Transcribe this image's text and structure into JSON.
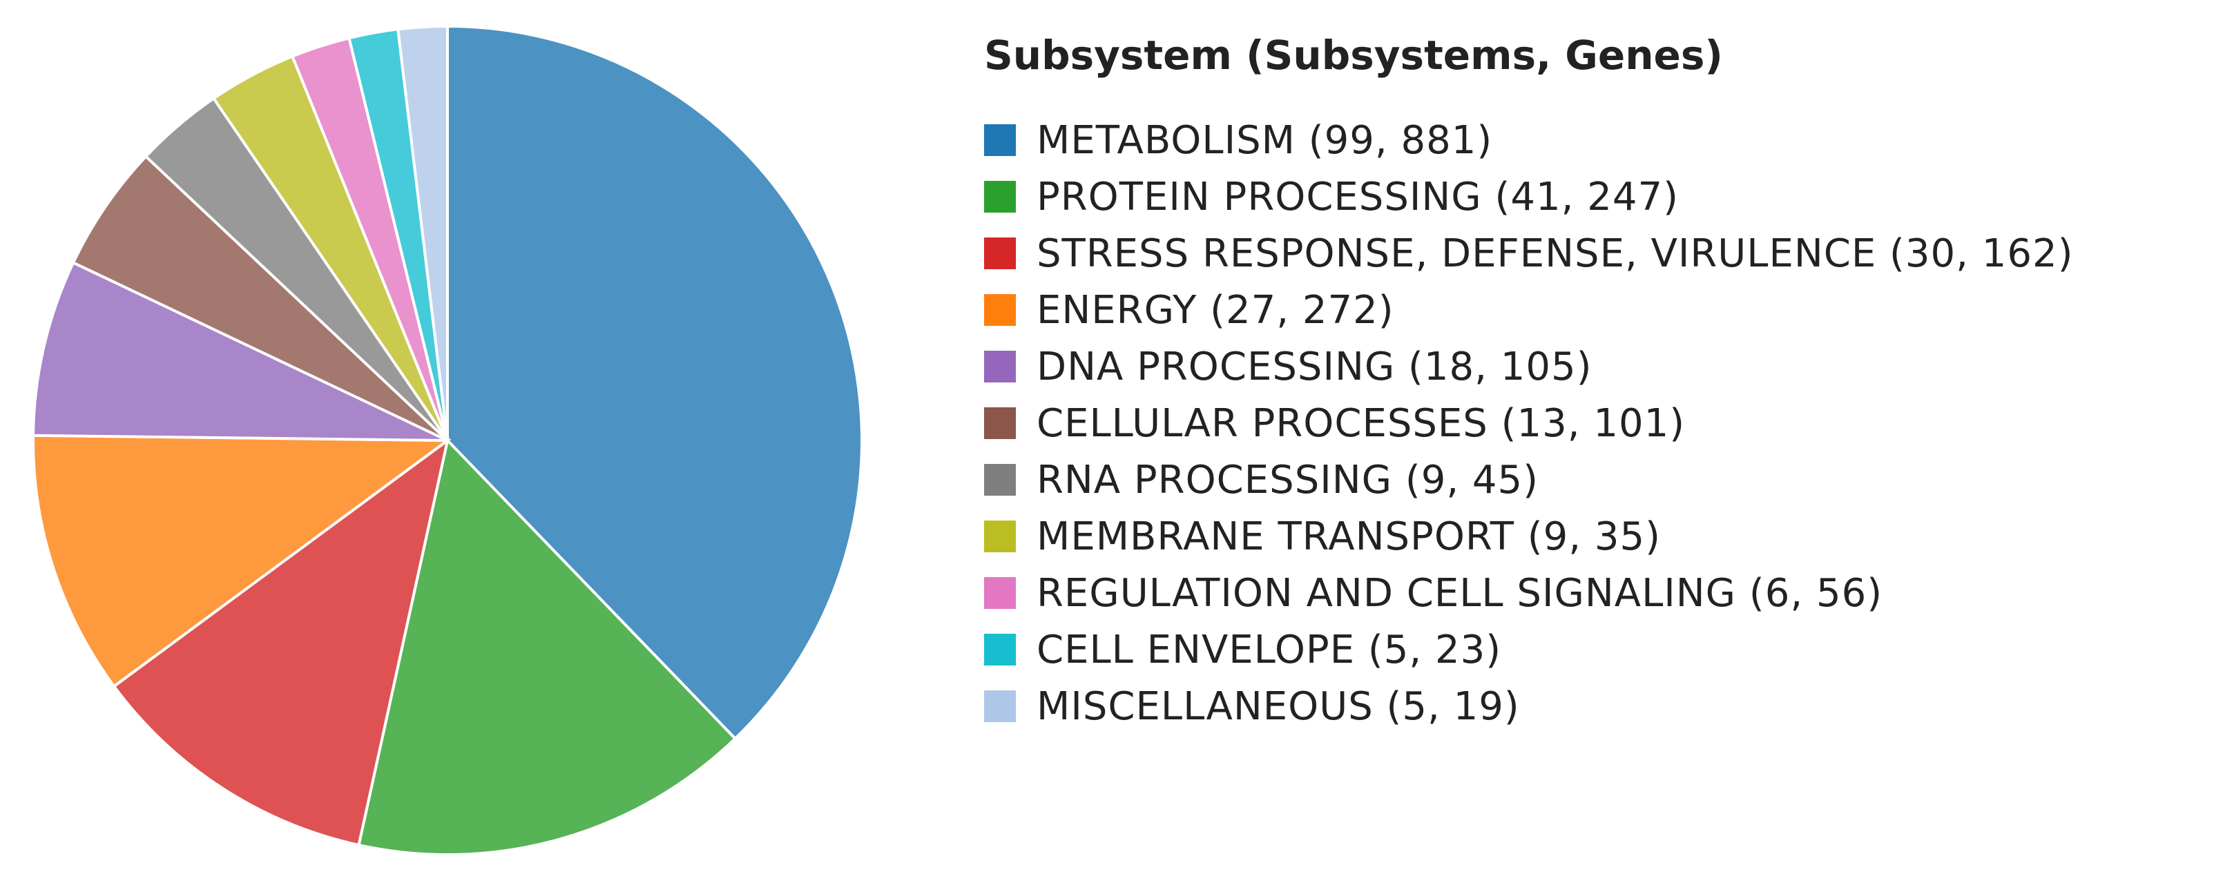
{
  "chart_data": {
    "type": "pie",
    "title": "Subsystem (Subsystems, Genes)",
    "slices": [
      {
        "label": "METABOLISM (99, 881)",
        "subsystems": 99,
        "genes": 881,
        "color": "#1f77b4"
      },
      {
        "label": "PROTEIN PROCESSING (41, 247)",
        "subsystems": 41,
        "genes": 247,
        "color": "#2ca02c"
      },
      {
        "label": "STRESS RESPONSE, DEFENSE, VIRULENCE (30, 162)",
        "subsystems": 30,
        "genes": 162,
        "color": "#d62728"
      },
      {
        "label": "ENERGY (27, 272)",
        "subsystems": 27,
        "genes": 272,
        "color": "#ff7f0e"
      },
      {
        "label": "DNA PROCESSING (18, 105)",
        "subsystems": 18,
        "genes": 105,
        "color": "#9467bd"
      },
      {
        "label": "CELLULAR PROCESSES (13, 101)",
        "subsystems": 13,
        "genes": 101,
        "color": "#8c564b"
      },
      {
        "label": "RNA PROCESSING (9, 45)",
        "subsystems": 9,
        "genes": 45,
        "color": "#7f7f7f"
      },
      {
        "label": "MEMBRANE TRANSPORT (9, 35)",
        "subsystems": 9,
        "genes": 35,
        "color": "#bcbd22"
      },
      {
        "label": "REGULATION AND CELL SIGNALING (6, 56)",
        "subsystems": 6,
        "genes": 56,
        "color": "#e377c2"
      },
      {
        "label": "CELL ENVELOPE (5, 23)",
        "subsystems": 5,
        "genes": 23,
        "color": "#17becf"
      },
      {
        "label": "MISCELLANEOUS (5, 19)",
        "subsystems": 5,
        "genes": 19,
        "color": "#aec7e8"
      }
    ],
    "value_field": "subsystems",
    "legend_position": "right"
  }
}
